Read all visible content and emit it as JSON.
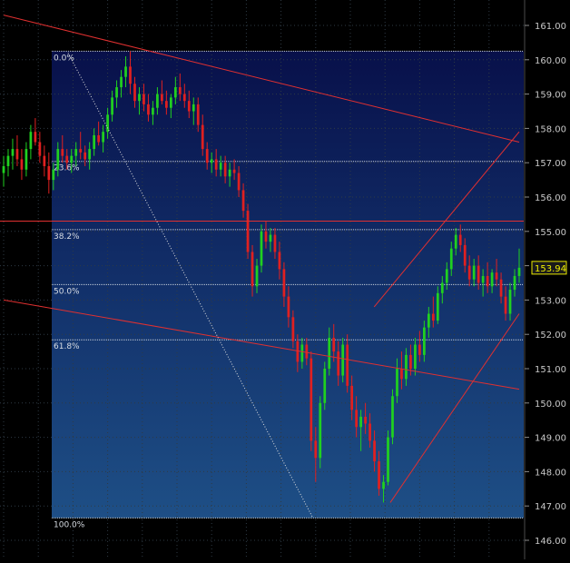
{
  "chart_data": {
    "type": "candlestick",
    "y_axis": {
      "min": 146.0,
      "max": 161.0,
      "ticks": [
        "161.00",
        "160.00",
        "159.00",
        "158.00",
        "157.00",
        "156.00",
        "155.00",
        "154.00",
        "153.00",
        "152.00",
        "151.00",
        "150.00",
        "149.00",
        "148.00",
        "147.00",
        "146.00"
      ]
    },
    "last_price": "153.94",
    "fibonacci": {
      "high": 160.25,
      "low": 146.65,
      "levels": [
        {
          "label": "0.0%",
          "price": 160.25
        },
        {
          "label": "23.6%",
          "price": 157.04
        },
        {
          "label": "38.2%",
          "price": 155.05
        },
        {
          "label": "50.0%",
          "price": 153.45
        },
        {
          "label": "61.8%",
          "price": 151.84
        },
        {
          "label": "100.0%",
          "price": 146.65
        }
      ]
    },
    "horizontal_line": {
      "price": 155.3
    },
    "trendlines": [
      {
        "name": "upper-downtrend",
        "from": [
          0,
          161.3
        ],
        "to": [
          160,
          157.6
        ]
      },
      {
        "name": "lower-downtrend",
        "from": [
          0,
          153.0
        ],
        "to": [
          160,
          150.4
        ]
      },
      {
        "name": "channel-upper",
        "from": [
          115,
          152.8
        ],
        "to": [
          160,
          157.9
        ]
      },
      {
        "name": "channel-lower",
        "from": [
          120,
          147.1
        ],
        "to": [
          160,
          152.6
        ]
      },
      {
        "name": "fib-diagonal",
        "from": [
          20,
          160.2
        ],
        "to": [
          96,
          146.65
        ]
      }
    ],
    "candles": [
      [
        156.7,
        157.2,
        156.3,
        156.9
      ],
      [
        156.9,
        157.4,
        156.6,
        157.2
      ],
      [
        157.2,
        157.7,
        156.8,
        157.4
      ],
      [
        157.4,
        157.8,
        156.9,
        157.1
      ],
      [
        157.1,
        157.4,
        156.5,
        156.8
      ],
      [
        156.8,
        157.6,
        156.6,
        157.4
      ],
      [
        157.4,
        158.1,
        157.1,
        157.9
      ],
      [
        157.9,
        158.3,
        157.5,
        157.6
      ],
      [
        157.6,
        157.9,
        157.0,
        157.2
      ],
      [
        157.2,
        157.5,
        156.6,
        156.9
      ],
      [
        156.9,
        157.3,
        156.1,
        156.5
      ],
      [
        156.5,
        157.0,
        156.2,
        156.8
      ],
      [
        156.8,
        157.6,
        156.6,
        157.4
      ],
      [
        157.4,
        157.8,
        157.0,
        157.2
      ],
      [
        157.2,
        157.4,
        156.8,
        157.0
      ],
      [
        157.0,
        157.4,
        156.7,
        157.2
      ],
      [
        157.2,
        157.6,
        156.9,
        157.4
      ],
      [
        157.4,
        157.9,
        157.1,
        157.3
      ],
      [
        157.3,
        157.5,
        156.9,
        157.1
      ],
      [
        157.1,
        157.6,
        156.8,
        157.4
      ],
      [
        157.4,
        158.0,
        157.2,
        157.8
      ],
      [
        157.8,
        158.2,
        157.5,
        157.6
      ],
      [
        157.6,
        158.1,
        157.3,
        157.9
      ],
      [
        157.9,
        158.6,
        157.7,
        158.4
      ],
      [
        158.4,
        159.1,
        158.2,
        158.9
      ],
      [
        158.9,
        159.4,
        158.6,
        159.2
      ],
      [
        159.2,
        159.7,
        158.9,
        159.5
      ],
      [
        159.5,
        160.1,
        159.2,
        159.8
      ],
      [
        159.8,
        160.25,
        159.0,
        159.3
      ],
      [
        159.3,
        159.5,
        158.6,
        158.8
      ],
      [
        158.8,
        159.2,
        158.4,
        159.0
      ],
      [
        159.0,
        159.3,
        158.5,
        158.7
      ],
      [
        158.7,
        159.0,
        158.2,
        158.4
      ],
      [
        158.4,
        158.8,
        158.1,
        158.6
      ],
      [
        158.6,
        159.2,
        158.4,
        159.0
      ],
      [
        159.0,
        159.4,
        158.7,
        158.8
      ],
      [
        158.8,
        159.1,
        158.4,
        158.6
      ],
      [
        158.6,
        159.0,
        158.3,
        158.9
      ],
      [
        158.9,
        159.5,
        158.7,
        159.2
      ],
      [
        159.2,
        159.6,
        158.8,
        159.0
      ],
      [
        159.0,
        159.3,
        158.6,
        158.8
      ],
      [
        158.8,
        159.1,
        158.3,
        158.5
      ],
      [
        158.5,
        158.9,
        158.1,
        158.7
      ],
      [
        158.7,
        158.9,
        157.9,
        158.1
      ],
      [
        158.1,
        158.4,
        157.2,
        157.4
      ],
      [
        157.4,
        157.6,
        156.8,
        157.0
      ],
      [
        157.0,
        157.3,
        156.7,
        157.1
      ],
      [
        157.1,
        157.4,
        156.6,
        156.8
      ],
      [
        156.8,
        157.2,
        156.6,
        157.0
      ],
      [
        157.0,
        157.2,
        156.4,
        156.6
      ],
      [
        156.6,
        157.0,
        156.3,
        156.8
      ],
      [
        156.8,
        157.1,
        156.5,
        156.7
      ],
      [
        156.7,
        156.9,
        156.0,
        156.2
      ],
      [
        156.2,
        156.4,
        155.4,
        155.6
      ],
      [
        155.6,
        155.8,
        154.2,
        154.4
      ],
      [
        154.4,
        154.6,
        153.1,
        153.4
      ],
      [
        153.4,
        154.2,
        153.2,
        154.0
      ],
      [
        154.0,
        155.2,
        153.8,
        155.0
      ],
      [
        155.0,
        155.3,
        154.5,
        154.7
      ],
      [
        154.7,
        155.1,
        154.4,
        154.9
      ],
      [
        154.9,
        155.1,
        154.2,
        154.4
      ],
      [
        154.4,
        154.7,
        153.6,
        153.9
      ],
      [
        153.9,
        154.1,
        152.8,
        153.1
      ],
      [
        153.1,
        153.4,
        152.2,
        152.5
      ],
      [
        152.5,
        152.7,
        151.6,
        151.8
      ],
      [
        151.8,
        152.0,
        150.9,
        151.2
      ],
      [
        151.2,
        151.9,
        151.0,
        151.7
      ],
      [
        151.7,
        151.9,
        151.1,
        151.3
      ],
      [
        151.3,
        151.5,
        148.6,
        148.9
      ],
      [
        148.9,
        149.3,
        147.7,
        148.4
      ],
      [
        148.4,
        150.2,
        148.1,
        150.0
      ],
      [
        150.0,
        151.2,
        149.8,
        151.0
      ],
      [
        151.0,
        152.2,
        150.8,
        151.9
      ],
      [
        151.9,
        152.3,
        151.2,
        151.5
      ],
      [
        151.5,
        151.8,
        150.5,
        150.8
      ],
      [
        150.8,
        151.9,
        150.6,
        151.7
      ],
      [
        151.7,
        152.0,
        150.3,
        150.5
      ],
      [
        150.5,
        150.8,
        149.5,
        149.8
      ],
      [
        149.8,
        150.2,
        149.0,
        149.3
      ],
      [
        149.3,
        149.8,
        148.6,
        149.6
      ],
      [
        149.6,
        150.0,
        149.1,
        149.4
      ],
      [
        149.4,
        149.7,
        148.7,
        148.9
      ],
      [
        148.9,
        149.2,
        148.0,
        148.3
      ],
      [
        148.3,
        148.6,
        147.3,
        147.5
      ],
      [
        147.5,
        147.9,
        147.1,
        147.7
      ],
      [
        147.7,
        149.2,
        147.6,
        149.0
      ],
      [
        149.0,
        150.4,
        148.8,
        150.2
      ],
      [
        150.2,
        151.3,
        150.0,
        151.0
      ],
      [
        151.0,
        151.5,
        150.4,
        150.7
      ],
      [
        150.7,
        151.6,
        150.5,
        151.4
      ],
      [
        151.4,
        151.7,
        150.8,
        151.0
      ],
      [
        151.0,
        151.9,
        150.8,
        151.7
      ],
      [
        151.7,
        152.1,
        151.2,
        151.4
      ],
      [
        151.4,
        152.4,
        151.2,
        152.2
      ],
      [
        152.2,
        152.8,
        151.9,
        152.6
      ],
      [
        152.6,
        153.1,
        152.2,
        152.4
      ],
      [
        152.4,
        153.4,
        152.3,
        153.2
      ],
      [
        153.2,
        153.7,
        152.9,
        153.5
      ],
      [
        153.5,
        154.1,
        153.3,
        153.9
      ],
      [
        153.9,
        154.7,
        153.7,
        154.5
      ],
      [
        154.5,
        155.1,
        154.3,
        154.9
      ],
      [
        154.9,
        155.2,
        154.4,
        154.6
      ],
      [
        154.6,
        154.8,
        153.8,
        154.0
      ],
      [
        154.0,
        154.3,
        153.4,
        153.6
      ],
      [
        153.6,
        154.2,
        153.4,
        154.0
      ],
      [
        154.0,
        154.3,
        153.3,
        153.5
      ],
      [
        153.5,
        153.9,
        153.1,
        153.7
      ],
      [
        153.7,
        154.1,
        153.2,
        153.4
      ],
      [
        153.4,
        153.9,
        153.2,
        153.8
      ],
      [
        153.8,
        154.2,
        153.4,
        153.6
      ],
      [
        153.6,
        153.8,
        152.9,
        153.1
      ],
      [
        153.1,
        153.4,
        152.4,
        152.6
      ],
      [
        152.6,
        153.5,
        152.4,
        153.3
      ],
      [
        153.3,
        153.9,
        153.1,
        153.7
      ],
      [
        153.7,
        154.5,
        153.5,
        153.94
      ]
    ]
  }
}
